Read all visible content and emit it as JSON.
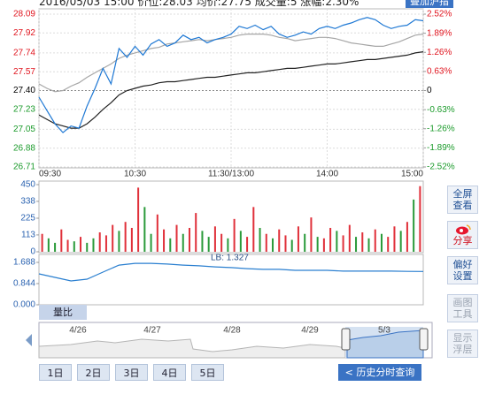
{
  "header": {
    "info": "2016/05/03 15:00 价位:28.03 均价:27.75 成交量:5 涨幅:2.30%",
    "overlay_button": "叠加沪指"
  },
  "chart_data": [
    {
      "type": "line",
      "grid": true,
      "tick_colors": {
        "up": "#e0141e",
        "down": "#1a9a2a",
        "flat": "#000000"
      },
      "xlim": [
        0,
        240
      ],
      "xticks": [
        {
          "value": 0,
          "label": "09:30"
        },
        {
          "value": 60,
          "label": "10:30"
        },
        {
          "value": 120,
          "label": "11:30/13:00"
        },
        {
          "value": 180,
          "label": "14:00"
        },
        {
          "value": 240,
          "label": "15:00"
        }
      ],
      "ylim": [
        26.71,
        28.09
      ],
      "yticks": [
        28.09,
        27.92,
        27.74,
        27.57,
        {
          "value": 27.4,
          "label": "27.40"
        },
        27.23,
        27.05,
        26.88,
        26.71
      ],
      "y2lim": [
        -2.52,
        2.52
      ],
      "y2ticks": [
        {
          "value": 2.52,
          "label": "2.52%"
        },
        {
          "value": 1.89,
          "label": "1.89%"
        },
        {
          "value": 1.26,
          "label": "1.26%"
        },
        {
          "value": 0.63,
          "label": "0.63%"
        },
        0,
        {
          "value": -0.63,
          "label": "-0.63%"
        },
        {
          "value": -1.26,
          "label": "-1.26%"
        },
        {
          "value": -1.89,
          "label": "-1.89%"
        },
        {
          "value": -2.52,
          "label": "-2.52%"
        }
      ],
      "x": [
        0,
        5,
        10,
        15,
        20,
        25,
        30,
        35,
        40,
        45,
        50,
        55,
        60,
        65,
        70,
        75,
        80,
        85,
        90,
        95,
        100,
        105,
        110,
        115,
        120,
        125,
        130,
        135,
        140,
        145,
        150,
        155,
        160,
        165,
        170,
        175,
        180,
        185,
        190,
        195,
        200,
        205,
        210,
        215,
        220,
        225,
        230,
        235,
        240
      ],
      "series": [
        {
          "color": "#a6a6a6",
          "values": [
            27.46,
            27.42,
            27.39,
            27.4,
            27.44,
            27.47,
            27.52,
            27.56,
            27.6,
            27.64,
            27.69,
            27.72,
            27.74,
            27.76,
            27.78,
            27.79,
            27.82,
            27.83,
            27.84,
            27.85,
            27.86,
            27.85,
            27.86,
            27.87,
            27.88,
            27.9,
            27.91,
            27.91,
            27.91,
            27.9,
            27.88,
            27.87,
            27.85,
            27.86,
            27.87,
            27.88,
            27.88,
            27.87,
            27.85,
            27.83,
            27.82,
            27.81,
            27.8,
            27.8,
            27.82,
            27.84,
            27.87,
            27.9,
            27.91
          ]
        },
        {
          "color": "#222222",
          "values": [
            27.18,
            27.14,
            27.1,
            27.08,
            27.06,
            27.06,
            27.1,
            27.16,
            27.23,
            27.29,
            27.36,
            27.4,
            27.42,
            27.44,
            27.45,
            27.47,
            27.48,
            27.48,
            27.49,
            27.5,
            27.51,
            27.52,
            27.52,
            27.53,
            27.54,
            27.55,
            27.56,
            27.56,
            27.57,
            27.58,
            27.59,
            27.6,
            27.6,
            27.61,
            27.62,
            27.63,
            27.64,
            27.64,
            27.65,
            27.66,
            27.67,
            27.68,
            27.68,
            27.69,
            27.7,
            27.71,
            27.72,
            27.74,
            27.75
          ]
        },
        {
          "color": "#1e78d4",
          "values": [
            27.34,
            27.22,
            27.1,
            27.02,
            27.08,
            27.06,
            27.26,
            27.42,
            27.6,
            27.46,
            27.78,
            27.7,
            27.8,
            27.72,
            27.82,
            27.86,
            27.8,
            27.83,
            27.9,
            27.86,
            27.88,
            27.83,
            27.86,
            27.88,
            27.91,
            27.98,
            27.96,
            27.99,
            27.95,
            27.98,
            27.91,
            27.88,
            27.9,
            27.93,
            27.91,
            27.96,
            27.98,
            27.96,
            27.99,
            28.01,
            28.04,
            28.06,
            28.04,
            27.99,
            27.96,
            27.98,
            27.99,
            28.04,
            28.03
          ]
        }
      ]
    },
    {
      "type": "bar",
      "tick_color": "#2a62b0",
      "xlim": [
        0,
        240
      ],
      "ylim": [
        0,
        450
      ],
      "yticks": [
        450,
        338,
        225,
        113,
        0
      ],
      "x": [
        2,
        6,
        10,
        14,
        18,
        22,
        26,
        30,
        34,
        38,
        42,
        46,
        50,
        54,
        58,
        62,
        66,
        70,
        74,
        78,
        82,
        86,
        90,
        94,
        98,
        102,
        106,
        110,
        114,
        118,
        122,
        126,
        130,
        134,
        138,
        142,
        146,
        150,
        154,
        158,
        162,
        166,
        170,
        174,
        178,
        182,
        186,
        190,
        194,
        198,
        202,
        206,
        210,
        214,
        218,
        222,
        226,
        230,
        234,
        238
      ],
      "values": [
        120,
        90,
        60,
        150,
        80,
        70,
        100,
        60,
        90,
        130,
        110,
        180,
        140,
        200,
        160,
        430,
        300,
        120,
        250,
        150,
        90,
        180,
        120,
        160,
        260,
        140,
        100,
        170,
        120,
        90,
        220,
        140,
        100,
        300,
        160,
        120,
        90,
        150,
        110,
        80,
        170,
        120,
        230,
        100,
        90,
        160,
        140,
        110,
        180,
        100,
        130,
        90,
        150,
        120,
        100,
        170,
        140,
        200,
        350,
        440
      ],
      "colors": [
        "#e0303a",
        "#2a9a3a",
        "#2a9a3a",
        "#e0303a",
        "#e0303a",
        "#2a9a3a",
        "#e0303a",
        "#2a9a3a",
        "#2a9a3a",
        "#e0303a",
        "#e0303a",
        "#e0303a",
        "#2a9a3a",
        "#e0303a",
        "#e0303a",
        "#e0303a",
        "#2a9a3a",
        "#2a9a3a",
        "#e0303a",
        "#e0303a",
        "#2a9a3a",
        "#e0303a",
        "#2a9a3a",
        "#e0303a",
        "#e0303a",
        "#2a9a3a",
        "#2a9a3a",
        "#e0303a",
        "#e0303a",
        "#2a9a3a",
        "#e0303a",
        "#2a9a3a",
        "#e0303a",
        "#e0303a",
        "#2a9a3a",
        "#e0303a",
        "#2a9a3a",
        "#e0303a",
        "#e0303a",
        "#2a9a3a",
        "#e0303a",
        "#2a9a3a",
        "#e0303a",
        "#2a9a3a",
        "#e0303a",
        "#e0303a",
        "#2a9a3a",
        "#e0303a",
        "#e0303a",
        "#2a9a3a",
        "#e0303a",
        "#2a9a3a",
        "#e0303a",
        "#2a9a3a",
        "#e0303a",
        "#e0303a",
        "#2a9a3a",
        "#e0303a",
        "#2a9a3a",
        "#e0303a"
      ]
    },
    {
      "type": "line",
      "tick_color": "#2a62b0",
      "annotation": "LB: 1.327",
      "xlim": [
        0,
        240
      ],
      "ylim": [
        0,
        1.688
      ],
      "yticks": [
        1.688,
        0.844,
        {
          "value": 0,
          "label": "0.000"
        }
      ],
      "x": [
        0,
        10,
        20,
        30,
        40,
        50,
        60,
        70,
        80,
        90,
        100,
        110,
        120,
        130,
        140,
        150,
        160,
        170,
        180,
        190,
        200,
        210,
        220,
        230,
        240
      ],
      "series": [
        {
          "color": "#2a7fd0",
          "values": [
            1.23,
            1.09,
            0.95,
            1.02,
            1.3,
            1.58,
            1.65,
            1.65,
            1.62,
            1.58,
            1.55,
            1.51,
            1.48,
            1.44,
            1.41,
            1.41,
            1.37,
            1.37,
            1.37,
            1.34,
            1.34,
            1.34,
            1.34,
            1.33,
            1.327
          ]
        }
      ]
    }
  ],
  "tab": "量比",
  "navigator": {
    "dates": [
      "4/26",
      "4/27",
      "4/28",
      "4/29",
      "5/3"
    ]
  },
  "buttons": {
    "days": [
      "1日",
      "2日",
      "3日",
      "4日",
      "5日"
    ],
    "history": "< 历史分时查询"
  },
  "side": [
    "全屏查看",
    "分享",
    "偏好设置",
    "画图工具",
    "显示浮层"
  ]
}
